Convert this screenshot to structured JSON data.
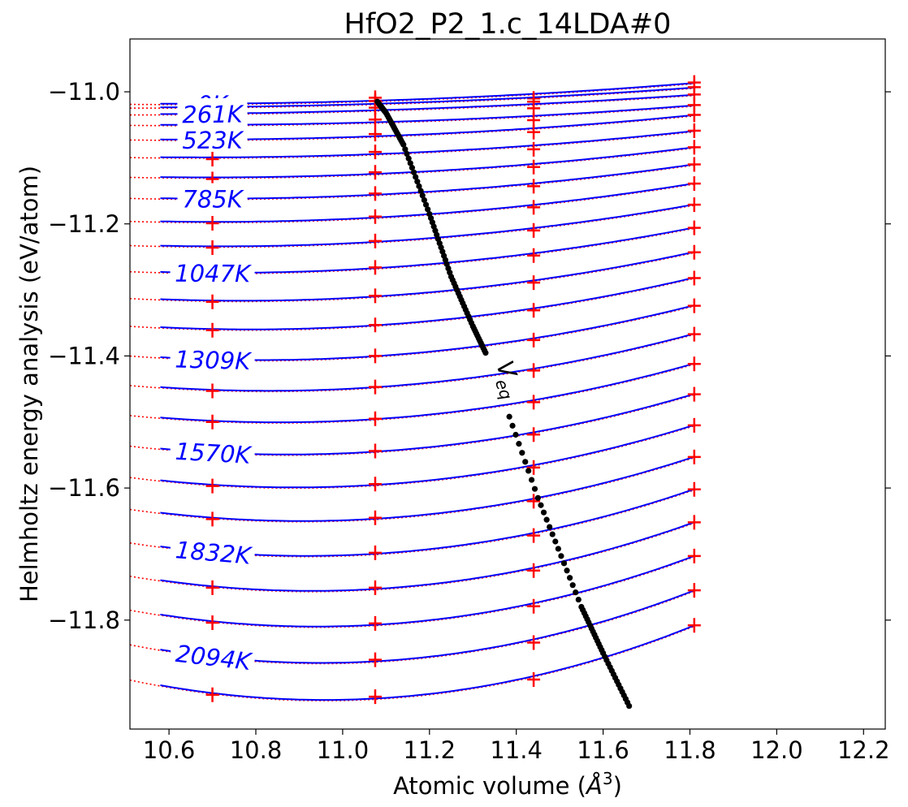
{
  "chart_data": {
    "type": "line",
    "title": "HfO2_P2_1.c_14LDA#0",
    "xlabel": "Atomic volume (",
    "xlabel_unit": "Å",
    "xlabel_exp": "3",
    "xlabel_close": ")",
    "ylabel": "Helmholtz energy analysis (eV/atom)",
    "xlim": [
      10.51,
      12.25
    ],
    "ylim": [
      -11.965,
      -10.92
    ],
    "xticks": [
      10.6,
      10.8,
      11.0,
      11.2,
      11.4,
      11.6,
      11.8,
      12.0,
      12.2
    ],
    "xtick_labels": [
      "10.6",
      "10.8",
      "11.0",
      "11.2",
      "11.4",
      "11.6",
      "11.8",
      "12.0",
      "12.2"
    ],
    "yticks": [
      -11.0,
      -11.2,
      -11.4,
      -11.6,
      -11.8
    ],
    "ytick_labels": [
      "−11.0",
      "−11.2",
      "−11.4",
      "−11.6",
      "−11.8"
    ],
    "data_volumes": [
      10.7,
      11.075,
      11.44,
      11.81
    ],
    "curve_colors": {
      "fit": "#0000ff",
      "dotted": "#ff0000",
      "points": "#ff0000",
      "veq": "#000000"
    },
    "series": [
      {
        "label": "0K",
        "values": [
          -11.021,
          -11.009,
          -11.01,
          -10.986
        ]
      },
      {
        "label": "",
        "values": [
          -11.026,
          -11.014,
          -11.015,
          -10.993
        ]
      },
      {
        "label": "261K",
        "values": [
          -11.036,
          -11.024,
          -11.025,
          -11.004
        ]
      },
      {
        "label": "",
        "values": [
          -11.053,
          -11.042,
          -11.043,
          -11.02
        ]
      },
      {
        "label": "523K",
        "values": [
          -11.075,
          -11.064,
          -11.061,
          -11.035
        ]
      },
      {
        "label": "",
        "values": [
          -11.102,
          -11.091,
          -11.087,
          -11.059
        ]
      },
      {
        "label": "",
        "values": [
          -11.132,
          -11.122,
          -11.114,
          -11.084
        ]
      },
      {
        "label": "785K",
        "values": [
          -11.164,
          -11.154,
          -11.143,
          -11.11
        ]
      },
      {
        "label": "",
        "values": [
          -11.199,
          -11.189,
          -11.175,
          -11.139
        ]
      },
      {
        "label": "",
        "values": [
          -11.236,
          -11.226,
          -11.21,
          -11.171
        ]
      },
      {
        "label": "1047K",
        "values": [
          -11.276,
          -11.266,
          -11.248,
          -11.206
        ]
      },
      {
        "label": "",
        "values": [
          -11.318,
          -11.309,
          -11.289,
          -11.243
        ]
      },
      {
        "label": "",
        "values": [
          -11.361,
          -11.353,
          -11.331,
          -11.282
        ]
      },
      {
        "label": "1309K",
        "values": [
          -11.407,
          -11.4,
          -11.376,
          -11.324
        ]
      },
      {
        "label": "",
        "values": [
          -11.453,
          -11.447,
          -11.422,
          -11.367
        ]
      },
      {
        "label": "",
        "values": [
          -11.5,
          -11.495,
          -11.47,
          -11.412
        ]
      },
      {
        "label": "1570K",
        "values": [
          -11.548,
          -11.544,
          -11.519,
          -11.458
        ]
      },
      {
        "label": "",
        "values": [
          -11.597,
          -11.594,
          -11.569,
          -11.505
        ]
      },
      {
        "label": "",
        "values": [
          -11.647,
          -11.645,
          -11.62,
          -11.553
        ]
      },
      {
        "label": "1832K",
        "values": [
          -11.699,
          -11.698,
          -11.672,
          -11.602
        ]
      },
      {
        "label": "",
        "values": [
          -11.751,
          -11.751,
          -11.725,
          -11.652
        ]
      },
      {
        "label": "",
        "values": [
          -11.804,
          -11.805,
          -11.779,
          -11.703
        ]
      },
      {
        "label": "2094K",
        "values": [
          -11.858,
          -11.86,
          -11.834,
          -11.755
        ]
      },
      {
        "label": "",
        "values": [
          -11.913,
          -11.916,
          -11.89,
          -11.808
        ]
      }
    ],
    "veq_label": "V",
    "veq_subscript": "eq",
    "veq_curve": {
      "x": [
        11.08,
        11.1,
        11.14,
        11.2,
        11.25,
        11.3,
        11.34,
        11.45,
        11.55,
        11.6,
        11.66
      ],
      "y": [
        -11.015,
        -11.032,
        -11.08,
        -11.185,
        -11.28,
        -11.355,
        -11.41,
        -11.615,
        -11.78,
        -11.85,
        -11.93
      ]
    }
  }
}
